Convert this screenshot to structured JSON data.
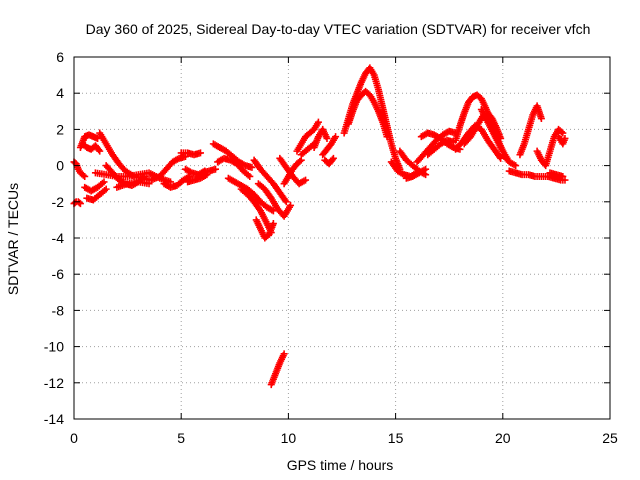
{
  "chart_data": {
    "type": "scatter",
    "title": "Day 360 of 2025, Sidereal Day-to-day VTEC variation (SDTVAR) for receiver vfch",
    "xlabel": "GPS time / hours",
    "ylabel": "SDTVAR / TECUs",
    "xlim": [
      0,
      25
    ],
    "ylim": [
      -14,
      6
    ],
    "xticks": [
      0,
      5,
      10,
      15,
      20,
      25
    ],
    "yticks": [
      -14,
      -12,
      -10,
      -8,
      -6,
      -4,
      -2,
      0,
      2,
      4,
      6
    ],
    "grid": true,
    "marker": "+",
    "series": [
      {
        "name": "SDTVAR",
        "color": "#ff0000",
        "segments": [
          {
            "x": [
              0.0,
              0.1,
              0.2,
              0.3
            ],
            "y": [
              -2.1,
              -2.0,
              -2.0,
              -2.1
            ]
          },
          {
            "x": [
              0.0,
              0.1,
              0.2,
              0.3,
              0.5
            ],
            "y": [
              0.2,
              0.1,
              -0.2,
              -0.4,
              -0.6
            ]
          },
          {
            "x": [
              0.3,
              0.5,
              0.7,
              0.9,
              1.1
            ],
            "y": [
              1.0,
              1.6,
              1.7,
              1.6,
              1.5
            ]
          },
          {
            "x": [
              0.4,
              0.6,
              0.8,
              1.0,
              1.2
            ],
            "y": [
              1.2,
              1.0,
              0.9,
              1.1,
              0.8
            ]
          },
          {
            "x": [
              0.5,
              0.8,
              1.1,
              1.4
            ],
            "y": [
              -1.2,
              -1.4,
              -1.2,
              -0.9
            ]
          },
          {
            "x": [
              0.6,
              0.9,
              1.2,
              1.5
            ],
            "y": [
              -1.8,
              -1.9,
              -1.6,
              -1.3
            ]
          },
          {
            "x": [
              1.2,
              1.5,
              1.8,
              2.1,
              2.4,
              2.8,
              3.2,
              3.6,
              4.0
            ],
            "y": [
              1.8,
              1.2,
              0.6,
              0.1,
              -0.3,
              -0.6,
              -0.7,
              -0.8,
              -0.6
            ]
          },
          {
            "x": [
              1.5,
              1.8,
              2.1,
              2.4,
              2.7,
              3.0,
              3.3
            ],
            "y": [
              0.0,
              -0.4,
              -0.8,
              -1.0,
              -1.1,
              -0.9,
              -0.6
            ]
          },
          {
            "x": [
              1.0,
              1.5,
              2.0,
              2.5,
              3.0,
              3.5,
              4.0,
              4.5
            ],
            "y": [
              -0.4,
              -0.5,
              -0.6,
              -0.6,
              -0.5,
              -0.4,
              -0.7,
              -0.9
            ]
          },
          {
            "x": [
              2.0,
              2.5,
              3.0,
              3.5
            ],
            "y": [
              -1.2,
              -1.0,
              -0.9,
              -1.0
            ]
          },
          {
            "x": [
              4.0,
              4.3,
              4.6,
              4.9,
              5.2
            ],
            "y": [
              -0.6,
              -0.2,
              0.2,
              0.4,
              0.5
            ]
          },
          {
            "x": [
              4.2,
              4.5,
              4.8,
              5.1,
              5.4
            ],
            "y": [
              -1.0,
              -1.2,
              -1.1,
              -0.8,
              -0.6
            ]
          },
          {
            "x": [
              5.0,
              5.3,
              5.6,
              5.9
            ],
            "y": [
              0.7,
              0.7,
              0.6,
              0.7
            ]
          },
          {
            "x": [
              5.2,
              5.5,
              5.8,
              6.1
            ],
            "y": [
              -0.2,
              -0.4,
              -0.5,
              -0.3
            ]
          },
          {
            "x": [
              5.3,
              5.6,
              5.9,
              6.2
            ],
            "y": [
              -0.9,
              -0.8,
              -0.7,
              -0.5
            ]
          },
          {
            "x": [
              6.0,
              6.3,
              6.6
            ],
            "y": [
              -0.4,
              -0.3,
              -0.2
            ]
          },
          {
            "x": [
              6.5,
              6.8,
              7.1,
              7.4,
              7.7,
              8.0,
              8.3
            ],
            "y": [
              1.2,
              1.0,
              0.8,
              0.5,
              0.2,
              0.0,
              -0.1
            ]
          },
          {
            "x": [
              6.7,
              7.0,
              7.3,
              7.6,
              7.9,
              8.2
            ],
            "y": [
              0.2,
              0.4,
              0.3,
              0.1,
              -0.3,
              -0.6
            ]
          },
          {
            "x": [
              7.2,
              7.5,
              7.8,
              8.1,
              8.4,
              8.7,
              9.0,
              9.3
            ],
            "y": [
              -0.7,
              -0.9,
              -1.1,
              -1.3,
              -1.6,
              -2.0,
              -2.3,
              -2.5
            ]
          },
          {
            "x": [
              7.8,
              8.1,
              8.4,
              8.7,
              9.0,
              9.2
            ],
            "y": [
              -1.3,
              -1.6,
              -2.0,
              -2.5,
              -3.2,
              -3.7
            ]
          },
          {
            "x": [
              8.5,
              8.7,
              8.9,
              9.1,
              9.3
            ],
            "y": [
              -3.0,
              -3.5,
              -4.0,
              -3.8,
              -3.2
            ]
          },
          {
            "x": [
              8.4,
              8.7,
              9.0,
              9.3,
              9.6,
              9.9
            ],
            "y": [
              0.3,
              -0.2,
              -0.6,
              -1.0,
              -1.5,
              -2.0
            ]
          },
          {
            "x": [
              8.6,
              8.9,
              9.2,
              9.5,
              9.8,
              10.1
            ],
            "y": [
              -1.0,
              -1.3,
              -1.8,
              -2.4,
              -2.8,
              -2.2
            ]
          },
          {
            "x": [
              9.2,
              9.4,
              9.6,
              9.8
            ],
            "y": [
              -12.1,
              -11.5,
              -10.9,
              -10.4
            ]
          },
          {
            "x": [
              9.8,
              10.0,
              10.2,
              10.4,
              10.6
            ],
            "y": [
              -1.0,
              -0.6,
              -0.2,
              0.1,
              0.3
            ]
          },
          {
            "x": [
              9.6,
              9.9,
              10.2,
              10.5,
              10.8
            ],
            "y": [
              0.4,
              -0.1,
              -0.6,
              -1.0,
              -0.8
            ]
          },
          {
            "x": [
              10.4,
              10.6,
              10.8,
              11.0,
              11.2,
              11.4
            ],
            "y": [
              0.8,
              1.2,
              1.6,
              1.8,
              2.0,
              2.4
            ]
          },
          {
            "x": [
              10.6,
              10.9,
              11.2
            ],
            "y": [
              0.6,
              0.9,
              1.2
            ]
          },
          {
            "x": [
              11.2,
              11.4,
              11.6,
              11.8
            ],
            "y": [
              1.0,
              1.6,
              2.0,
              1.5
            ]
          },
          {
            "x": [
              11.6,
              11.8,
              12.0,
              12.2
            ],
            "y": [
              0.6,
              0.9,
              1.2,
              1.6
            ]
          },
          {
            "x": [
              11.7,
              11.9,
              12.1
            ],
            "y": [
              0.3,
              0.1,
              0.4
            ]
          },
          {
            "x": [
              12.6,
              12.8,
              13.0,
              13.2,
              13.4,
              13.6,
              13.8,
              14.0,
              14.2,
              14.4,
              14.6,
              14.8,
              15.0,
              15.2
            ],
            "y": [
              1.8,
              2.6,
              3.4,
              4.0,
              4.6,
              5.1,
              5.4,
              5.0,
              4.2,
              3.2,
              2.2,
              1.2,
              0.4,
              -0.2
            ]
          },
          {
            "x": [
              12.8,
              13.0,
              13.2,
              13.4,
              13.6,
              13.8,
              14.0,
              14.2,
              14.4,
              14.6
            ],
            "y": [
              2.3,
              3.0,
              3.6,
              3.9,
              4.1,
              3.9,
              3.5,
              3.0,
              2.4,
              1.6
            ]
          },
          {
            "x": [
              14.8,
              15.1,
              15.4,
              15.7,
              16.0
            ],
            "y": [
              0.2,
              -0.3,
              -0.5,
              -0.6,
              -0.4
            ]
          },
          {
            "x": [
              15.2,
              15.5,
              15.8,
              16.1,
              16.4
            ],
            "y": [
              0.8,
              0.3,
              0.0,
              -0.3,
              -0.5
            ]
          },
          {
            "x": [
              15.5,
              15.8,
              16.1,
              16.4
            ],
            "y": [
              -0.7,
              -0.6,
              -0.4,
              -0.2
            ]
          },
          {
            "x": [
              16.0,
              16.3,
              16.6,
              16.9,
              17.2,
              17.5,
              17.8
            ],
            "y": [
              0.2,
              0.6,
              1.0,
              1.4,
              1.7,
              1.9,
              1.8
            ]
          },
          {
            "x": [
              16.2,
              16.5,
              16.8,
              17.1,
              17.4,
              17.7,
              18.0
            ],
            "y": [
              1.6,
              1.8,
              1.7,
              1.5,
              1.2,
              1.0,
              0.9
            ]
          },
          {
            "x": [
              16.5,
              16.8,
              17.1,
              17.4,
              17.7
            ],
            "y": [
              0.6,
              0.9,
              1.2,
              1.4,
              1.3
            ]
          },
          {
            "x": [
              17.8,
              18.0,
              18.2,
              18.4,
              18.6,
              18.8,
              19.0,
              19.2,
              19.4
            ],
            "y": [
              1.4,
              2.2,
              2.9,
              3.5,
              3.8,
              3.9,
              3.7,
              3.2,
              2.6
            ]
          },
          {
            "x": [
              17.8,
              18.1,
              18.4,
              18.7,
              19.0,
              19.3,
              19.6,
              19.9
            ],
            "y": [
              0.9,
              1.3,
              1.8,
              2.2,
              2.0,
              1.4,
              0.9,
              0.4
            ]
          },
          {
            "x": [
              18.2,
              18.5,
              18.8,
              19.1,
              19.4,
              19.7,
              20.0
            ],
            "y": [
              1.2,
              1.6,
              2.2,
              2.8,
              2.4,
              1.6,
              0.8
            ]
          },
          {
            "x": [
              19.0,
              19.3,
              19.6,
              19.9,
              20.2
            ],
            "y": [
              3.1,
              2.4,
              1.7,
              1.0,
              0.4
            ]
          },
          {
            "x": [
              19.3,
              19.5,
              19.7,
              19.9
            ],
            "y": [
              2.9,
              2.6,
              2.1,
              1.5
            ]
          },
          {
            "x": [
              20.0,
              20.3,
              20.6
            ],
            "y": [
              0.6,
              0.2,
              0.0
            ]
          },
          {
            "x": [
              20.3,
              20.6,
              20.9,
              21.2,
              21.5,
              21.8,
              22.1,
              22.4,
              22.7,
              22.9
            ],
            "y": [
              -0.3,
              -0.4,
              -0.5,
              -0.5,
              -0.6,
              -0.6,
              -0.6,
              -0.7,
              -0.8,
              -0.8
            ]
          },
          {
            "x": [
              20.8,
              21.0,
              21.2,
              21.4,
              21.6,
              21.8
            ],
            "y": [
              0.6,
              1.2,
              2.0,
              2.8,
              3.3,
              2.6
            ]
          },
          {
            "x": [
              21.6,
              21.8,
              22.0,
              22.2,
              22.4,
              22.6,
              22.8
            ],
            "y": [
              0.8,
              0.3,
              0.0,
              0.8,
              1.6,
              2.0,
              1.8
            ]
          },
          {
            "x": [
              22.6,
              22.7,
              22.8,
              22.9
            ],
            "y": [
              1.6,
              1.4,
              1.2,
              1.5
            ]
          },
          {
            "x": [
              22.2,
              22.5,
              22.8
            ],
            "y": [
              -0.4,
              -0.5,
              -0.6
            ]
          }
        ]
      }
    ]
  }
}
